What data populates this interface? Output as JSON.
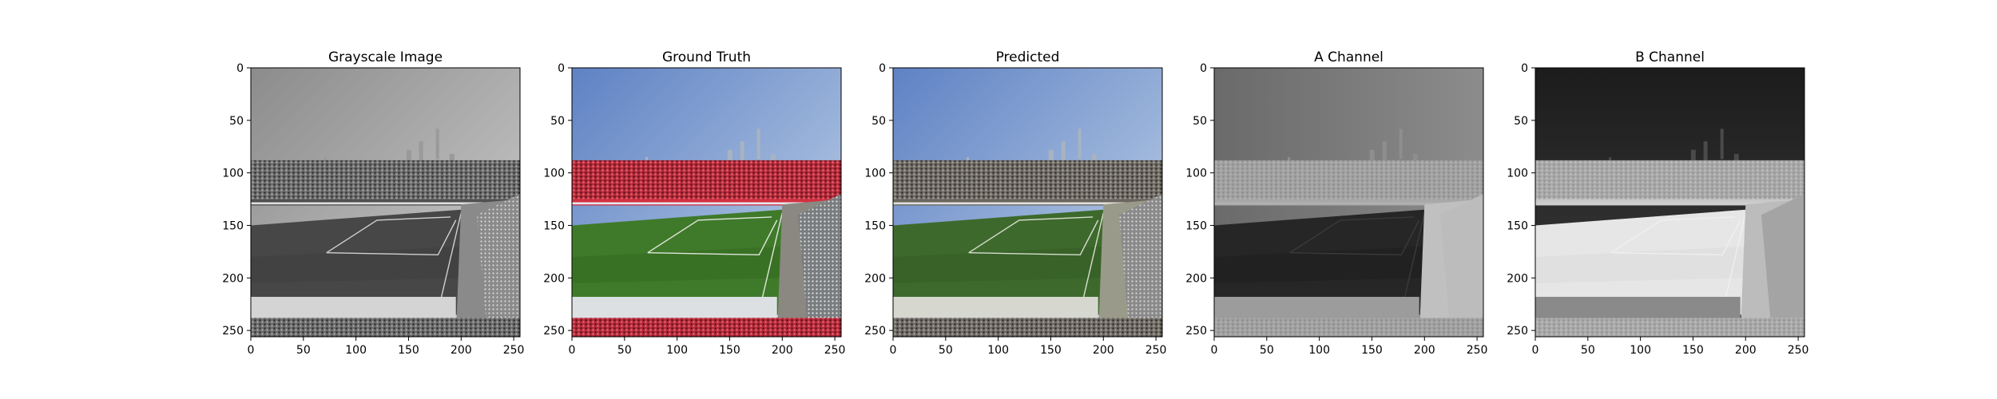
{
  "figure": {
    "panels": [
      {
        "title": "Grayscale Image",
        "kind": "gray"
      },
      {
        "title": "Ground Truth",
        "kind": "color"
      },
      {
        "title": "Predicted",
        "kind": "predicted"
      },
      {
        "title": "A Channel",
        "kind": "a-channel"
      },
      {
        "title": "B Channel",
        "kind": "b-channel"
      }
    ],
    "x_ticks": [
      "0",
      "50",
      "100",
      "150",
      "200",
      "250"
    ],
    "y_ticks": [
      "0",
      "50",
      "100",
      "150",
      "200",
      "250"
    ],
    "x_tick_values": [
      0,
      50,
      100,
      150,
      200,
      250
    ],
    "y_tick_values": [
      0,
      50,
      100,
      150,
      200,
      250
    ],
    "axis_range": [
      0,
      256
    ]
  },
  "colors": {
    "sky_color": "#8aa6cf",
    "crowd_color": "#c23040",
    "pitch_color": "#3f7a2a",
    "axis_color": "#000000"
  }
}
